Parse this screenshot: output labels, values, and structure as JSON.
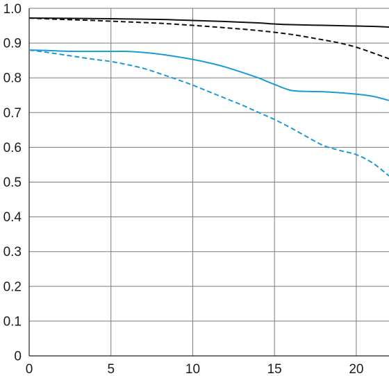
{
  "chart_data": {
    "type": "line",
    "title": "",
    "xlabel": "",
    "ylabel": "",
    "xlim": [
      0,
      22
    ],
    "ylim": [
      0,
      1.0
    ],
    "grid": true,
    "x_ticks": [
      0,
      5,
      10,
      15,
      20
    ],
    "x_tick_labels": [
      "0",
      "5",
      "10",
      "15",
      "20"
    ],
    "y_ticks": [
      0,
      0.1,
      0.2,
      0.3,
      0.4,
      0.5,
      0.6,
      0.7,
      0.8,
      0.9,
      1.0
    ],
    "y_tick_labels": [
      "0",
      "0.1",
      "0.2",
      "0.3",
      "0.4",
      "0.5",
      "0.6",
      "0.7",
      "0.8",
      "0.9",
      "1.0"
    ],
    "series": [
      {
        "color": "#111111",
        "style": "solid",
        "points": [
          [
            0,
            0.972
          ],
          [
            5,
            0.97
          ],
          [
            8,
            0.968
          ],
          [
            10,
            0.965
          ],
          [
            12,
            0.962
          ],
          [
            14,
            0.958
          ],
          [
            15,
            0.955
          ],
          [
            16,
            0.953
          ],
          [
            18,
            0.951
          ],
          [
            20,
            0.949
          ],
          [
            21,
            0.948
          ],
          [
            22,
            0.946
          ]
        ]
      },
      {
        "color": "#111111",
        "style": "dashed",
        "points": [
          [
            0,
            0.972
          ],
          [
            2,
            0.968
          ],
          [
            4,
            0.965
          ],
          [
            6,
            0.961
          ],
          [
            8,
            0.957
          ],
          [
            10,
            0.951
          ],
          [
            12,
            0.944
          ],
          [
            14,
            0.936
          ],
          [
            16,
            0.925
          ],
          [
            18,
            0.909
          ],
          [
            19,
            0.9
          ],
          [
            20,
            0.888
          ],
          [
            21,
            0.872
          ],
          [
            22,
            0.855
          ]
        ]
      },
      {
        "color": "#1b9ad6",
        "style": "solid",
        "points": [
          [
            0,
            0.88
          ],
          [
            1,
            0.879
          ],
          [
            2,
            0.877
          ],
          [
            3,
            0.876
          ],
          [
            4,
            0.876
          ],
          [
            5,
            0.876
          ],
          [
            6,
            0.876
          ],
          [
            7,
            0.873
          ],
          [
            8,
            0.868
          ],
          [
            9,
            0.861
          ],
          [
            10,
            0.853
          ],
          [
            11,
            0.843
          ],
          [
            12,
            0.831
          ],
          [
            13,
            0.816
          ],
          [
            14,
            0.8
          ],
          [
            15,
            0.781
          ],
          [
            16,
            0.764
          ],
          [
            17,
            0.761
          ],
          [
            18,
            0.76
          ],
          [
            19,
            0.757
          ],
          [
            20,
            0.753
          ],
          [
            21,
            0.747
          ],
          [
            22,
            0.735
          ]
        ]
      },
      {
        "color": "#1b9ad6",
        "style": "dashed",
        "points": [
          [
            0,
            0.88
          ],
          [
            1,
            0.874
          ],
          [
            2,
            0.867
          ],
          [
            3,
            0.86
          ],
          [
            4,
            0.853
          ],
          [
            5,
            0.847
          ],
          [
            6,
            0.838
          ],
          [
            7,
            0.827
          ],
          [
            8,
            0.812
          ],
          [
            9,
            0.796
          ],
          [
            10,
            0.779
          ],
          [
            11,
            0.76
          ],
          [
            12,
            0.741
          ],
          [
            13,
            0.722
          ],
          [
            14,
            0.701
          ],
          [
            15,
            0.68
          ],
          [
            16,
            0.656
          ],
          [
            17,
            0.63
          ],
          [
            18,
            0.605
          ],
          [
            19,
            0.591
          ],
          [
            20,
            0.579
          ],
          [
            21,
            0.555
          ],
          [
            22,
            0.518
          ]
        ]
      }
    ]
  }
}
